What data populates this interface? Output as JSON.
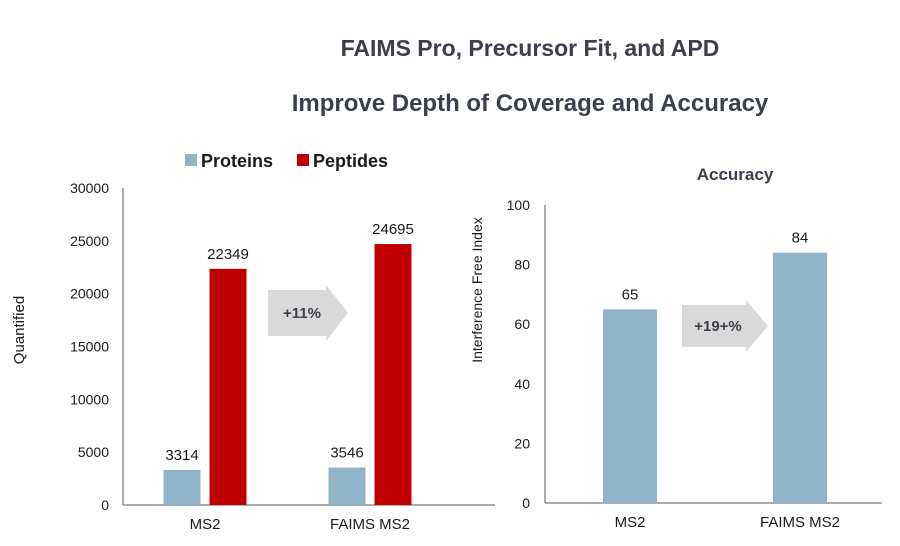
{
  "header": {
    "title_line1": "FAIMS Pro, Precursor Fit, and APD",
    "title_line2": "Improve Depth of Coverage and Accuracy"
  },
  "colors": {
    "proteins": "#8fb3c9",
    "peptides": "#c00000",
    "arrow": "#d9d9d9",
    "axis": "#595959"
  },
  "chart_data": [
    {
      "type": "bar",
      "title": "",
      "categories": [
        "MS2",
        "FAIMS MS2"
      ],
      "series": [
        {
          "name": "Proteins",
          "values": [
            3314,
            3546
          ]
        },
        {
          "name": "Peptides",
          "values": [
            22349,
            24695
          ]
        }
      ],
      "xlabel": "",
      "ylabel": "Quantified",
      "ylim": [
        0,
        30000
      ],
      "yticks": [
        0,
        5000,
        10000,
        15000,
        20000,
        25000,
        30000
      ],
      "legend": "top",
      "annotation": "+11%"
    },
    {
      "type": "bar",
      "title": "Accuracy",
      "categories": [
        "MS2",
        "FAIMS MS2"
      ],
      "series": [
        {
          "name": "Interference Free Index",
          "values": [
            65,
            84
          ]
        }
      ],
      "xlabel": "",
      "ylabel": "Interference Free Index",
      "ylim": [
        0,
        100
      ],
      "yticks": [
        0,
        20,
        40,
        60,
        80,
        100
      ],
      "annotation": "+19+%"
    }
  ]
}
